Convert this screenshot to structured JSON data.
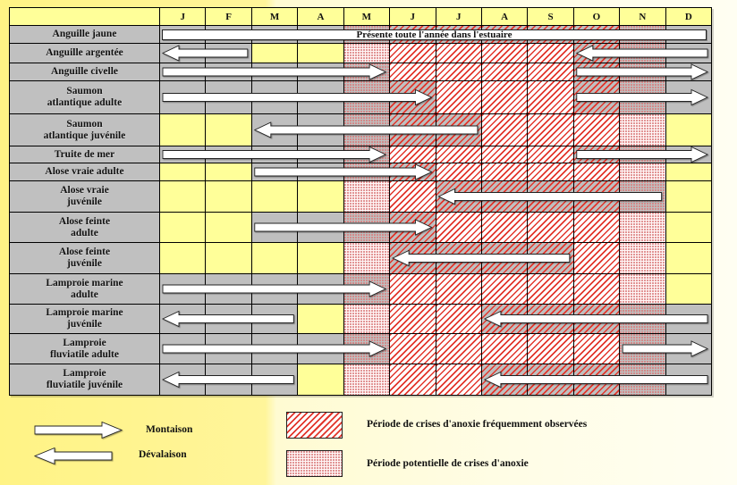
{
  "months": [
    "J",
    "F",
    "M",
    "A",
    "M",
    "J",
    "J",
    "A",
    "S",
    "O",
    "N",
    "D"
  ],
  "anoxia": {
    "frequent": [
      6,
      7,
      8,
      9,
      10
    ],
    "potential": [
      5,
      11
    ]
  },
  "rows": [
    {
      "label": "Anguille jaune",
      "present": [
        1,
        2,
        3,
        4,
        5,
        6,
        7,
        8,
        9,
        10,
        11,
        12
      ],
      "note": "Présente toute l'année dans l'estuaire",
      "montaison": [],
      "devalaison": []
    },
    {
      "label": "Anguille argentée",
      "present": [
        1,
        2,
        10,
        11,
        12
      ],
      "montaison": [],
      "devalaison": [
        {
          "from": 1,
          "to": 2
        },
        {
          "from": 10,
          "to": 12
        }
      ]
    },
    {
      "label": "Anguille civelle",
      "present": [
        1,
        2,
        3,
        4,
        5,
        10,
        11,
        12
      ],
      "montaison": [
        {
          "from": 1,
          "to": 5
        },
        {
          "from": 10,
          "to": 12
        }
      ],
      "devalaison": []
    },
    {
      "label": "Saumon\natlantique adulte",
      "present": [
        1,
        2,
        3,
        4,
        5,
        6,
        10,
        11,
        12
      ],
      "montaison": [
        {
          "from": 1,
          "to": 6
        },
        {
          "from": 10,
          "to": 12
        }
      ],
      "devalaison": []
    },
    {
      "label": "Saumon\natlantique juvénile",
      "present": [
        3,
        4,
        5,
        6,
        7
      ],
      "montaison": [],
      "devalaison": [
        {
          "from": 3,
          "to": 7
        }
      ]
    },
    {
      "label": "Truite de mer",
      "present": [
        1,
        2,
        3,
        4,
        5,
        10,
        11,
        12
      ],
      "montaison": [
        {
          "from": 1,
          "to": 5
        },
        {
          "from": 10,
          "to": 12
        }
      ],
      "devalaison": []
    },
    {
      "label": "Alose vraie adulte",
      "present": [
        3,
        4,
        5,
        6
      ],
      "montaison": [
        {
          "from": 3,
          "to": 6
        }
      ],
      "devalaison": []
    },
    {
      "label": "Alose vraie\njuvénile",
      "present": [
        7,
        8,
        9,
        10,
        11
      ],
      "montaison": [],
      "devalaison": [
        {
          "from": 7,
          "to": 11
        }
      ]
    },
    {
      "label": "Alose feinte\nadulte",
      "present": [
        3,
        4,
        5,
        6
      ],
      "montaison": [
        {
          "from": 3,
          "to": 6
        }
      ],
      "devalaison": []
    },
    {
      "label": "Alose feinte\njuvénile",
      "present": [
        6,
        7,
        8,
        9
      ],
      "montaison": [],
      "devalaison": [
        {
          "from": 6,
          "to": 9
        }
      ]
    },
    {
      "label": "Lamproie marine\nadulte",
      "present": [
        1,
        2,
        3,
        4,
        5
      ],
      "montaison": [
        {
          "from": 1,
          "to": 5
        }
      ],
      "devalaison": []
    },
    {
      "label": "Lamproie marine\njuvénile",
      "present": [
        1,
        2,
        3,
        8,
        9,
        10,
        11,
        12
      ],
      "montaison": [],
      "devalaison": [
        {
          "from": 1,
          "to": 3
        },
        {
          "from": 8,
          "to": 12
        }
      ]
    },
    {
      "label": "Lamproie\nfluviatile adulte",
      "present": [
        1,
        2,
        3,
        4,
        5,
        11,
        12
      ],
      "montaison": [
        {
          "from": 1,
          "to": 5
        },
        {
          "from": 11,
          "to": 12
        }
      ],
      "devalaison": []
    },
    {
      "label": "Lamproie\nfluviatile juvénile",
      "present": [
        1,
        2,
        3,
        8,
        9,
        10,
        11,
        12
      ],
      "montaison": [],
      "devalaison": [
        {
          "from": 1,
          "to": 3
        },
        {
          "from": 8,
          "to": 12
        }
      ]
    }
  ],
  "legend": {
    "montaison": "Montaison",
    "devalaison": "Dévalaison",
    "frequent": "Période de crises d'anoxie fréquemment observées",
    "potential": "Période potentielle de crises d'anoxie"
  },
  "colors": {
    "present": "#BFBFBF",
    "absent": "#FFFF99",
    "label": "#C0C0C0",
    "frequent": "#E2352B",
    "potential": "#D97A7A"
  }
}
